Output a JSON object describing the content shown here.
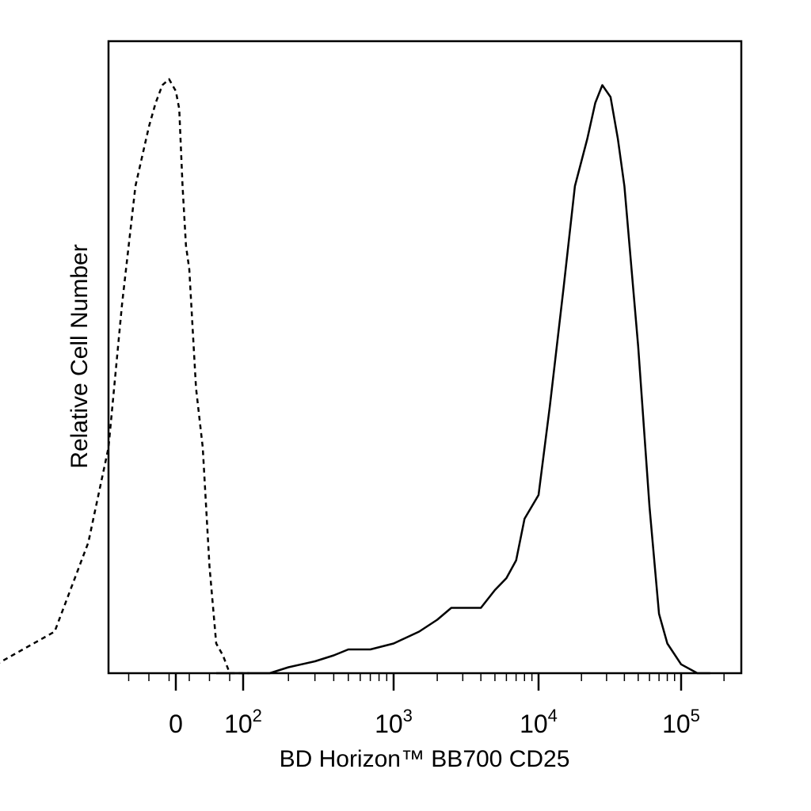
{
  "chart_data": {
    "type": "line",
    "title": "",
    "xlabel": "BD Horizon™ BB700 CD25",
    "ylabel": "Relative Cell Number",
    "x_scale": "biexponential (logicle)",
    "y_scale": "linear",
    "grid": false,
    "legend": "none",
    "xlim": [
      -300,
      250000
    ],
    "ylim": [
      0,
      1.0
    ],
    "x_tick_labels": [
      {
        "value": 0,
        "label": "0",
        "exp": ""
      },
      {
        "value": 100,
        "label": "10",
        "exp": "2"
      },
      {
        "value": 1000,
        "label": "10",
        "exp": "3"
      },
      {
        "value": 10000,
        "label": "10",
        "exp": "4"
      },
      {
        "value": 100000,
        "label": "10",
        "exp": "5"
      }
    ],
    "series": [
      {
        "style": "dashed",
        "color": "#000000",
        "x": [
          -290,
          -180,
          -130,
          -100,
          -80,
          -60,
          -40,
          -30,
          -20,
          -10,
          0,
          5,
          10,
          15,
          20,
          30,
          40,
          50,
          60,
          70,
          80,
          90,
          110
        ],
        "y": [
          0.0,
          0.07,
          0.22,
          0.38,
          0.62,
          0.82,
          0.92,
          0.96,
          0.99,
          1.0,
          0.98,
          0.95,
          0.82,
          0.72,
          0.68,
          0.48,
          0.38,
          0.18,
          0.05,
          0.03,
          0.0,
          0.0,
          0.0
        ]
      },
      {
        "style": "solid",
        "color": "#000000",
        "x": [
          60,
          150,
          200,
          300,
          400,
          500,
          700,
          1000,
          1500,
          2000,
          2500,
          3000,
          4000,
          5000,
          6000,
          7000,
          8000,
          10000,
          12000,
          15000,
          18000,
          22000,
          25000,
          28000,
          32000,
          36000,
          40000,
          50000,
          60000,
          70000,
          80000,
          100000,
          130000,
          160000
        ],
        "y": [
          0.0,
          0.0,
          0.01,
          0.02,
          0.03,
          0.04,
          0.04,
          0.05,
          0.07,
          0.09,
          0.11,
          0.11,
          0.11,
          0.14,
          0.16,
          0.19,
          0.26,
          0.3,
          0.45,
          0.65,
          0.82,
          0.9,
          0.96,
          0.99,
          0.97,
          0.9,
          0.82,
          0.55,
          0.28,
          0.1,
          0.05,
          0.015,
          0.0,
          0.0
        ]
      }
    ]
  }
}
